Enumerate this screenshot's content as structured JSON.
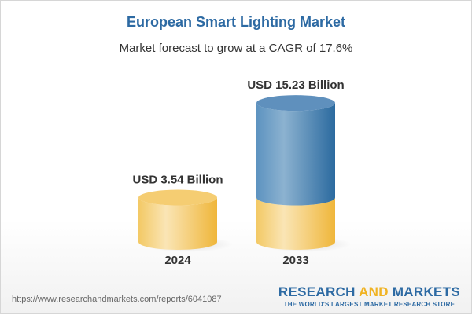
{
  "title": "European Smart Lighting Market",
  "subtitle": "Market forecast to grow at a CAGR of 17.6%",
  "chart_data": {
    "type": "bar",
    "style": "3d-cylinder",
    "categories": [
      "2024",
      "2033"
    ],
    "values": [
      3.54,
      15.23
    ],
    "data_labels": [
      "USD 3.54 Billion",
      "USD 15.23 Billion"
    ],
    "unit": "USD Billion",
    "colors": {
      "base": "#f0c050",
      "growth": "#3f7cb0"
    }
  },
  "footer": {
    "url": "https://www.researchandmarkets.com/reports/6041087",
    "logo_part1": "RESEARCH ",
    "logo_part2": "AND",
    "logo_part3": " MARKETS",
    "tagline": "THE WORLD'S LARGEST MARKET RESEARCH STORE"
  }
}
